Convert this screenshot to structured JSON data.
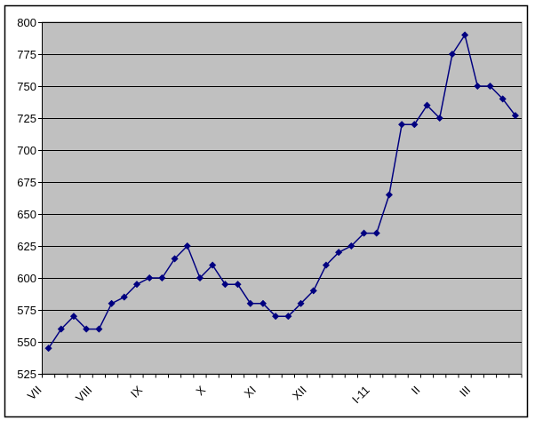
{
  "chart_data": {
    "type": "line",
    "title": "",
    "legend": "none",
    "grid": "horizontal gridlines on, gray plot background",
    "marker": "diamond",
    "n_points": 38,
    "values": [
      545,
      560,
      570,
      560,
      560,
      580,
      585,
      595,
      600,
      600,
      615,
      625,
      600,
      610,
      595,
      595,
      580,
      580,
      570,
      570,
      580,
      590,
      610,
      620,
      625,
      635,
      635,
      665,
      720,
      720,
      735,
      725,
      775,
      790,
      750,
      750,
      740,
      727
    ],
    "x_month_labels": [
      {
        "label": "VII",
        "tick": 0
      },
      {
        "label": "VIII",
        "tick": 4
      },
      {
        "label": "IX",
        "tick": 8
      },
      {
        "label": "X",
        "tick": 13
      },
      {
        "label": "XI",
        "tick": 17
      },
      {
        "label": "XII",
        "tick": 21
      },
      {
        "label": "I-11",
        "tick": 26
      },
      {
        "label": "II",
        "tick": 30
      },
      {
        "label": "III",
        "tick": 34
      }
    ],
    "x_label_rotation_deg": -45,
    "ylim": [
      525,
      800
    ],
    "y_tick_step": 25,
    "y_tick_labels": [
      "800",
      "775",
      "750",
      "725",
      "700",
      "675",
      "650",
      "625",
      "600",
      "575",
      "550",
      "525"
    ],
    "colors": {
      "series": "#000080",
      "plot_background": "#c0c0c0",
      "gridline": "#000000",
      "axis": "#000000",
      "plot_border": "#808080",
      "label_text": "#000000",
      "chart_background": "#ffffff",
      "chart_border": "#000000"
    }
  }
}
